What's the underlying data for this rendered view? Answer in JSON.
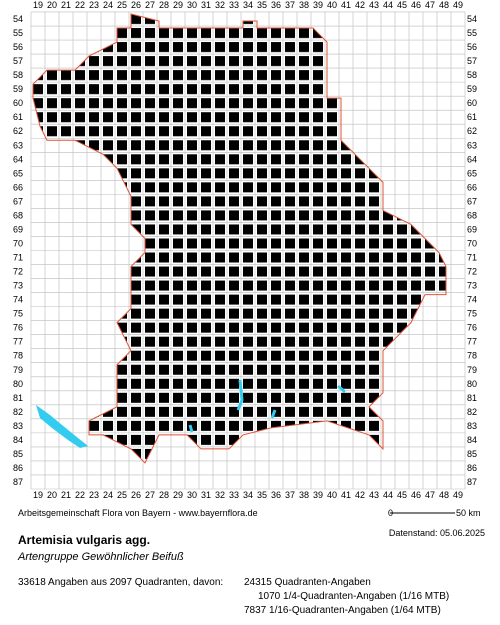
{
  "map": {
    "columns": [
      19,
      20,
      21,
      22,
      23,
      24,
      25,
      26,
      27,
      28,
      29,
      30,
      31,
      32,
      33,
      34,
      35,
      36,
      37,
      38,
      39,
      40,
      41,
      42,
      43,
      44,
      45,
      46,
      47,
      48,
      49
    ],
    "rows": [
      54,
      55,
      56,
      57,
      58,
      59,
      60,
      61,
      62,
      63,
      64,
      65,
      66,
      67,
      68,
      69,
      70,
      71,
      72,
      73,
      74,
      75,
      76,
      77,
      78,
      79,
      80,
      81,
      82,
      83,
      84,
      85,
      86,
      87
    ]
  },
  "footer": {
    "credit": "Arbeitsgemeinschaft Flora von Bayern - www.bayernflora.de",
    "scale_start": "0",
    "scale_end": "50 km",
    "date": "Datenstand: 05.06.2025"
  },
  "species": {
    "title": "Artemisia vulgaris agg.",
    "subtitle": "Artengruppe Gewöhnlicher Beifuß"
  },
  "stats": {
    "summary": "33618 Angaben aus 2097 Quadranten, davon:",
    "lines": [
      "24315 Quadranten-Angaben",
      "1070 1/4-Quadranten-Angaben (1/16 MTB)",
      "7837 1/16-Quadranten-Angaben (1/64 MTB)"
    ]
  }
}
